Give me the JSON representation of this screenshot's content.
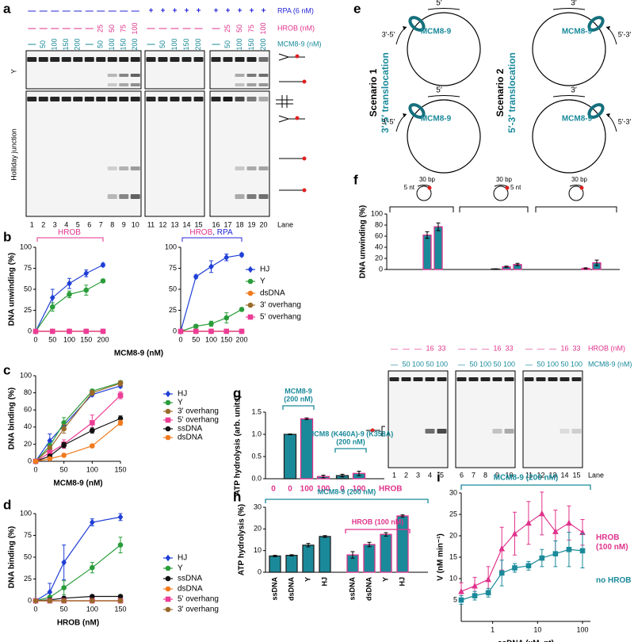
{
  "panel_labels": [
    "a",
    "b",
    "c",
    "d",
    "e",
    "f",
    "g",
    "h",
    "i"
  ],
  "gel_a": {
    "rows": [
      {
        "label": "RPA (6 nM)",
        "color": "#2424d8",
        "values": [
          "—",
          "—",
          "—",
          "—",
          "—",
          "—",
          "—",
          "—",
          "—",
          "—",
          "+",
          "+",
          "+",
          "+",
          "+",
          "+",
          "+",
          "+",
          "+",
          "+"
        ]
      },
      {
        "label": "HROB (nM)",
        "color": "#e0338c",
        "values": [
          "—",
          "—",
          "—",
          "—",
          "—",
          "—",
          25,
          50,
          75,
          100,
          "—",
          "—",
          "—",
          "—",
          "—",
          "—",
          25,
          50,
          75,
          100
        ]
      },
      {
        "label": "MCM8-9 (nM)",
        "color": "#1a8a9a",
        "values": [
          "—",
          50,
          100,
          150,
          200,
          "—",
          50,
          100,
          150,
          200,
          "—",
          50,
          100,
          150,
          200,
          "—",
          50,
          100,
          150,
          200
        ]
      }
    ],
    "substrates": [
      "Y",
      "Holliday junction"
    ],
    "lanes": [
      1,
      2,
      3,
      4,
      5,
      6,
      7,
      8,
      9,
      10,
      11,
      12,
      13,
      14,
      15,
      16,
      17,
      18,
      19,
      20
    ],
    "lane_title": "Lane"
  },
  "diagram_e": {
    "scenarios": [
      {
        "title": "Scenario 1",
        "subtitle": "3′-5′ translocation"
      },
      {
        "title": "Scenario 2",
        "subtitle": "5′-3′ translocation"
      }
    ],
    "circles": [
      {
        "end": "5′",
        "direction": "3′-5′",
        "protein": "MCM8-9"
      },
      {
        "end": "5′",
        "direction": "3′-5′",
        "protein": "MCM8-9"
      },
      {
        "end": "3′",
        "direction": "5′-3′",
        "protein": "MCM8-9"
      },
      {
        "end": "3′",
        "direction": "5′-3′",
        "protein": "MCM8-9"
      }
    ]
  },
  "gel_f": {
    "rows": [
      {
        "label": "HROB (nM)",
        "color": "#e0338c",
        "values": [
          "—",
          "—",
          "—",
          16,
          33,
          "—",
          "—",
          "—",
          16,
          33,
          "—",
          "—",
          "—",
          16,
          33
        ]
      },
      {
        "label": "MCM8-9 (nM)",
        "color": "#1a8a9a",
        "values": [
          "—",
          50,
          100,
          50,
          100,
          "—",
          50,
          100,
          50,
          100,
          "—",
          50,
          100,
          50,
          100
        ]
      }
    ],
    "lanes": [
      1,
      2,
      3,
      4,
      5,
      6,
      7,
      8,
      9,
      10,
      11,
      12,
      13,
      14,
      15
    ],
    "lane_title": "Lane"
  },
  "chart_data": [
    {
      "type": "line",
      "annotation": [
        {
          "text": "HROB",
          "color": "#e0338c"
        }
      ],
      "ylabel": "DNA unwinding (%)",
      "xlabel": "MCM8-9 (nM)",
      "x": [
        0,
        50,
        100,
        150,
        200
      ],
      "xlim": [
        0,
        200
      ],
      "xticks": [
        0,
        50,
        100,
        150,
        200
      ],
      "ylim": [
        0,
        100
      ],
      "yticks": [
        0,
        25,
        50,
        75,
        100
      ],
      "series": [
        {
          "color": "#1f3fd6",
          "marker": "diamond",
          "values": [
            0,
            40,
            57,
            69,
            79
          ],
          "errors": [
            0,
            10,
            6,
            4,
            2
          ]
        },
        {
          "color": "#2a9d3a",
          "marker": "circle",
          "values": [
            0,
            29,
            44,
            49,
            60
          ],
          "errors": [
            0,
            5,
            4,
            6,
            2
          ]
        },
        {
          "color": "#f07b1f",
          "marker": "circle",
          "values": [
            0,
            0,
            0,
            0,
            0
          ]
        },
        {
          "color": "#9a6a2a",
          "marker": "circle",
          "values": [
            0,
            0,
            0,
            0,
            0
          ]
        },
        {
          "color": "#ec3d96",
          "marker": "square",
          "values": [
            0,
            0,
            0,
            0,
            0
          ]
        }
      ]
    },
    {
      "type": "line",
      "annotation": [
        {
          "text": "HROB",
          "color": "#e0338c"
        },
        {
          "text": ", RPA",
          "color": "#2424d8"
        }
      ],
      "x": [
        0,
        50,
        100,
        150,
        200
      ],
      "xlim": [
        0,
        200
      ],
      "xticks": [
        0,
        50,
        100,
        150,
        200
      ],
      "ylim": [
        0,
        100
      ],
      "yticks": [
        0,
        25,
        50,
        75,
        100
      ],
      "legend": "right",
      "series": [
        {
          "name": "HJ",
          "color": "#1f3fd6",
          "marker": "diamond",
          "values": [
            0,
            65,
            77,
            88,
            91
          ],
          "errors": [
            0,
            2,
            7,
            4,
            2
          ]
        },
        {
          "name": "Y",
          "color": "#2a9d3a",
          "marker": "circle",
          "values": [
            0,
            6,
            9,
            16,
            26
          ],
          "errors": [
            0,
            2,
            3,
            6,
            1
          ]
        },
        {
          "name": "dsDNA",
          "color": "#f07b1f",
          "marker": "circle",
          "values": [
            0,
            0,
            0,
            0,
            0
          ]
        },
        {
          "name": "3' overhang",
          "color": "#9a6a2a",
          "marker": "circle",
          "values": [
            0,
            0,
            0,
            0,
            0
          ]
        },
        {
          "name": "5' overhang",
          "color": "#ec3d96",
          "marker": "square",
          "values": [
            0,
            0,
            0,
            0,
            0
          ]
        }
      ]
    },
    {
      "type": "line",
      "ylabel": "DNA binding (%)",
      "xlabel": "MCM8-9 (nM)",
      "legend": "right",
      "x": [
        0,
        25,
        50,
        100,
        150
      ],
      "xlim": [
        0,
        150
      ],
      "xticks": [
        0,
        50,
        100,
        150
      ],
      "ylim": [
        0,
        100
      ],
      "yticks": [
        0,
        20,
        40,
        60,
        80,
        100
      ],
      "series": [
        {
          "name": "HJ",
          "color": "#1f3fd6",
          "marker": "diamond",
          "values": [
            0,
            24,
            42,
            78,
            88
          ],
          "errors": [
            0,
            8,
            4,
            2,
            2
          ]
        },
        {
          "name": "Y",
          "color": "#2a9d3a",
          "marker": "circle",
          "values": [
            0,
            18,
            45,
            82,
            92
          ],
          "errors": [
            0,
            3,
            6,
            2,
            2
          ]
        },
        {
          "name": "3' overhang",
          "color": "#9a6a2a",
          "marker": "circle",
          "values": [
            0,
            15,
            38,
            80,
            91
          ],
          "errors": [
            0,
            3,
            5,
            3,
            3
          ]
        },
        {
          "name": "5' overhang",
          "color": "#ec3d96",
          "marker": "square",
          "values": [
            0,
            10,
            20,
            45,
            77
          ],
          "errors": [
            0,
            3,
            5,
            9,
            4
          ]
        },
        {
          "name": "ssDNA",
          "color": "#111111",
          "marker": "circle",
          "values": [
            0,
            6,
            19,
            36,
            50
          ],
          "errors": [
            0,
            2,
            3,
            3,
            3
          ]
        },
        {
          "name": "dsDNA",
          "color": "#f07b1f",
          "marker": "circle",
          "values": [
            0,
            3,
            7,
            18,
            45
          ],
          "errors": [
            0,
            1,
            2,
            2,
            3
          ]
        }
      ]
    },
    {
      "type": "line",
      "ylabel": "DNA binding (%)",
      "xlabel": "HROB (nM)",
      "legend": "right",
      "x": [
        0,
        25,
        50,
        100,
        150
      ],
      "xlim": [
        0,
        150
      ],
      "xticks": [
        0,
        50,
        100,
        150
      ],
      "ylim": [
        0,
        100
      ],
      "yticks": [
        0,
        25,
        50,
        75,
        100
      ],
      "series": [
        {
          "name": "HJ",
          "color": "#1f3fd6",
          "marker": "diamond",
          "values": [
            0,
            10,
            44,
            90,
            96
          ],
          "errors": [
            0,
            10,
            20,
            4,
            4
          ]
        },
        {
          "name": "Y",
          "color": "#2a9d3a",
          "marker": "circle",
          "values": [
            0,
            4,
            15,
            38,
            64
          ],
          "errors": [
            0,
            2,
            8,
            6,
            9
          ]
        },
        {
          "name": "ssDNA",
          "color": "#111111",
          "marker": "circle",
          "values": [
            0,
            1,
            3,
            5,
            5
          ]
        },
        {
          "name": "dsDNA",
          "color": "#f07b1f",
          "marker": "circle",
          "values": [
            0,
            0,
            0,
            0,
            0
          ]
        },
        {
          "name": "5' overhang",
          "color": "#ec3d96",
          "marker": "square",
          "values": [
            0,
            0,
            0,
            0,
            0
          ]
        },
        {
          "name": "3' overhang",
          "color": "#9a6a2a",
          "marker": "circle",
          "values": [
            0,
            0,
            0,
            0,
            0
          ]
        }
      ]
    },
    {
      "type": "bar",
      "ylabel": "DNA unwinding (%)",
      "ylim": [
        0,
        100
      ],
      "yticks": [
        0,
        20,
        40,
        60,
        80,
        100
      ],
      "color": "#1a8a9a",
      "edgecolors": [
        "#222222",
        "#222222",
        "#222222",
        "#e0338c",
        "#e0338c",
        "#222222",
        "#222222",
        "#222222",
        "#e0338c",
        "#e0338c",
        "#222222",
        "#222222",
        "#222222",
        "#e0338c",
        "#e0338c"
      ],
      "values": [
        0,
        0,
        0,
        62,
        77,
        0,
        0,
        1,
        5,
        9,
        0,
        0,
        0,
        2,
        12
      ],
      "errors": [
        0,
        0,
        0,
        6,
        7,
        0,
        0,
        0,
        1,
        2,
        0,
        0,
        0,
        1,
        5
      ],
      "substrates": [
        {
          "top": "30 bp",
          "side": "5 nt"
        },
        {
          "top": "30 bp",
          "side": "5 nt"
        },
        {
          "top": "30 bp"
        }
      ]
    },
    {
      "type": "bar",
      "ylabel": "ATP hydrolysis (arb. units)",
      "ylim": [
        0,
        1.5
      ],
      "yticks": [
        {
          "value": 0,
          "label": "0.0"
        },
        0.5,
        {
          "value": 1,
          "label": "1.0"
        },
        1.5
      ],
      "categories": [
        0,
        0,
        100,
        100,
        0,
        100
      ],
      "category_title": "HROB",
      "category_color": "#e0338c",
      "color": "#1a8a9a",
      "edgecolors": [
        "#222222",
        "#222222",
        "#e0338c",
        "#e0338c",
        "#222222",
        "#e0338c"
      ],
      "values": [
        0,
        1.0,
        1.35,
        0.05,
        0.07,
        0.12
      ],
      "errors": [
        0,
        0.01,
        0.02,
        0.03,
        0.03,
        0.05
      ],
      "brackets": [
        {
          "lines": [
            "MCM8-9",
            "(200 nM)"
          ],
          "color": "#1a8a9a"
        },
        {
          "lines": [
            "MCM8 (K460A)-9 (K358A)",
            "(200 nM)"
          ],
          "color": "#1a8a9a"
        }
      ]
    },
    {
      "type": "bar",
      "ylabel": "ATP hydrolysis (%)",
      "ylim": [
        0,
        30
      ],
      "yticks": [
        0,
        10,
        20,
        30
      ],
      "color": "#1a8a9a",
      "categories": [
        "ssDNA",
        "dsDNA",
        "Y",
        "HJ",
        "ssDNA",
        "dsDNA",
        "Y",
        "HJ"
      ],
      "edgecolors": [
        "#222222",
        "#222222",
        "#222222",
        "#222222",
        "#e0338c",
        "#e0338c",
        "#e0338c",
        "#e0338c"
      ],
      "values": [
        7.5,
        7.8,
        12.5,
        16.5,
        8,
        12.8,
        17.5,
        26
      ],
      "errors": [
        0.3,
        0.3,
        0.8,
        0.4,
        1.5,
        1,
        0.8,
        0.5
      ],
      "brackets": [
        {
          "lines": [
            "MCM8-9 (200 nM)"
          ],
          "color": "#1a8a9a"
        },
        {
          "lines": [
            "HROB (100 nM)"
          ],
          "color": "#e0338c"
        }
      ]
    },
    {
      "type": "line",
      "xscale": "log",
      "title": "MCM8-9 (200 nM)",
      "title_color": "#1a8a9a",
      "xlabel": "ssDNA (µM, nt)",
      "ylabel": "V (nM min⁻¹)",
      "legend": "right",
      "x": [
        0.2,
        0.4,
        0.8,
        1.6,
        3.1,
        6.3,
        12.5,
        25,
        50,
        100
      ],
      "xlim": [
        0.2,
        150
      ],
      "xticks": [
        1,
        10,
        100
      ],
      "ylim": [
        0,
        30
      ],
      "yticks": [
        5,
        10,
        15,
        20,
        25,
        30
      ],
      "series": [
        {
          "name": "HROB (100 nM)",
          "color": "#e0338c",
          "marker": "triangle",
          "values": [
            7,
            8.3,
            9.8,
            17,
            20.5,
            23,
            25.2,
            21,
            23,
            20.8
          ],
          "errors": [
            2,
            2,
            3,
            5,
            5,
            5,
            5,
            5,
            4,
            3
          ]
        },
        {
          "name": "no HROB",
          "color": "#1a8a9a",
          "marker": "square",
          "values": [
            5,
            6,
            6.7,
            11.3,
            12.5,
            13,
            14.8,
            15.8,
            16.8,
            16.5
          ],
          "errors": [
            1,
            1,
            1,
            3,
            1,
            1,
            2,
            3,
            4,
            4
          ]
        }
      ]
    }
  ]
}
